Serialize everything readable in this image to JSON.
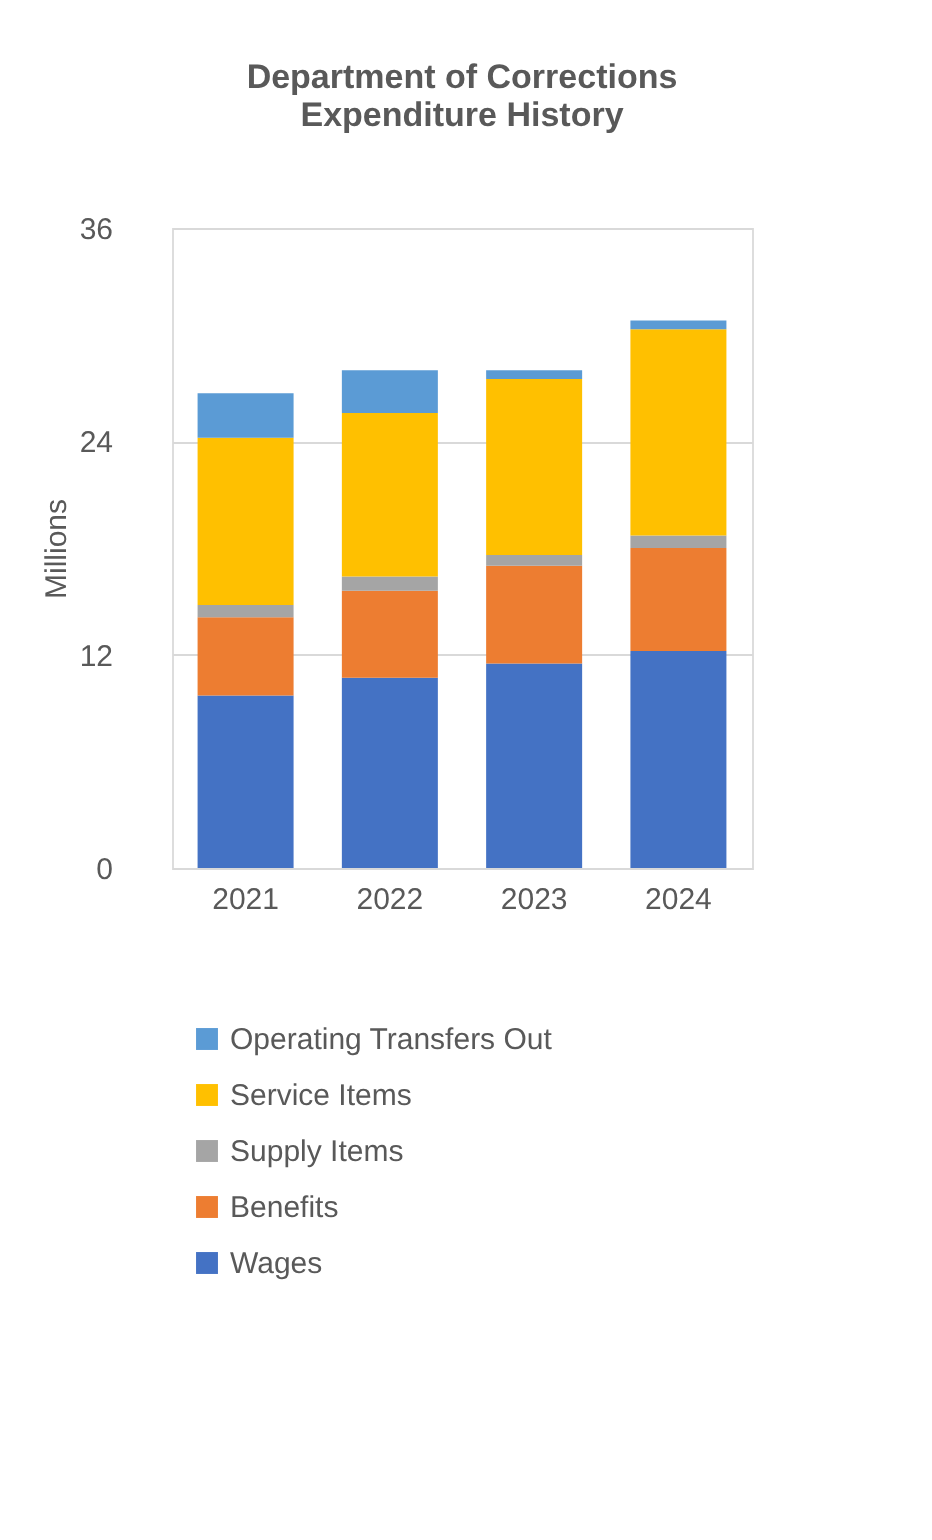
{
  "chart_data": {
    "type": "bar",
    "title": "Department of Corrections\nExpenditure History",
    "ylabel": "Millions",
    "categories": [
      "2021",
      "2022",
      "2023",
      "2024"
    ],
    "stacked": true,
    "series": [
      {
        "name": "Wages",
        "color": "#4472c4",
        "values": [
          9.7,
          10.7,
          11.5,
          12.2
        ]
      },
      {
        "name": "Benefits",
        "color": "#ed7d31",
        "values": [
          4.4,
          4.9,
          5.5,
          5.8
        ]
      },
      {
        "name": "Supply Items",
        "color": "#a5a5a5",
        "values": [
          0.7,
          0.8,
          0.6,
          0.7
        ]
      },
      {
        "name": "Service Items",
        "color": "#ffc000",
        "values": [
          9.4,
          9.2,
          9.9,
          11.6
        ]
      },
      {
        "name": "Operating Transfers Out",
        "color": "#5b9bd5",
        "values": [
          2.5,
          2.4,
          0.5,
          0.5
        ]
      }
    ],
    "ylim": [
      0,
      36
    ],
    "yticks": [
      0,
      12,
      24,
      36
    ],
    "grid": "y",
    "legend": "bottom"
  }
}
